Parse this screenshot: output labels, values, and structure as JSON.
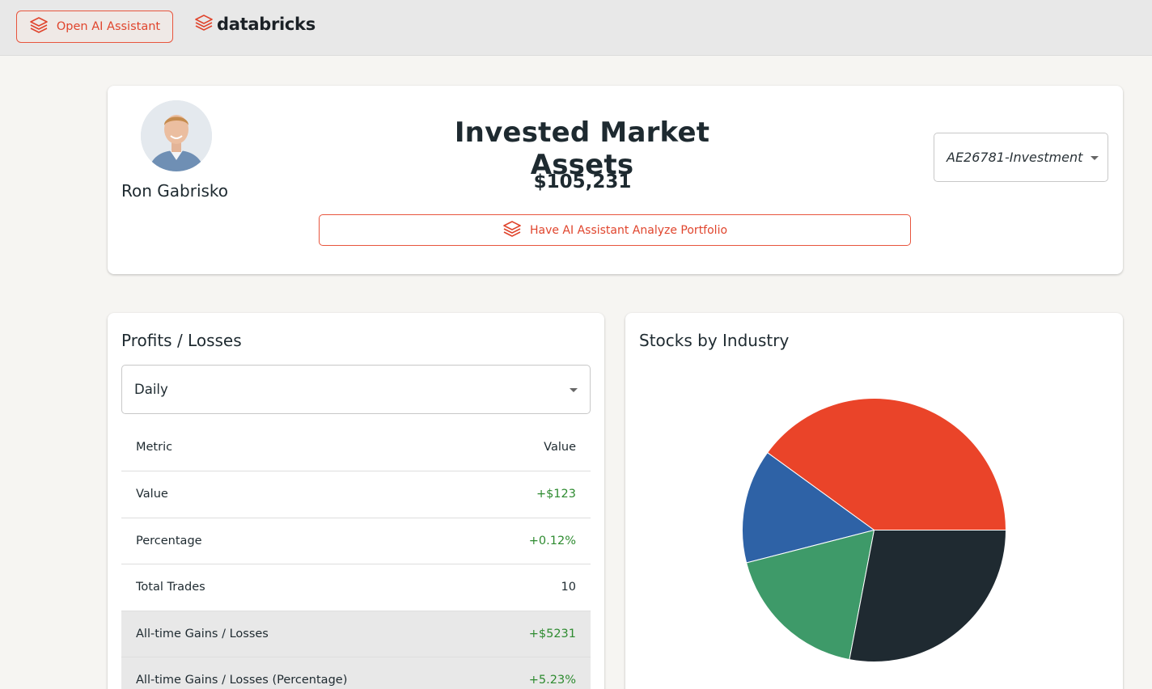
{
  "topbar": {
    "open_ai_label": "Open AI Assistant",
    "brand_name": "databricks",
    "brand_color": "#e0452d"
  },
  "header": {
    "user_name": "Ron Gabrisko",
    "title": "Invested Market Assets",
    "total_value": "$105,231",
    "analyze_label": "Have AI Assistant Analyze Portfolio",
    "account_selected": "AE26781-Investment"
  },
  "profits": {
    "title": "Profits / Losses",
    "period_selected": "Daily",
    "col_metric": "Metric",
    "col_value": "Value",
    "rows": [
      {
        "metric": "Value",
        "value": "+$123"
      },
      {
        "metric": "Percentage",
        "value": "+0.12%"
      },
      {
        "metric": "Total Trades",
        "value": "10"
      },
      {
        "metric": "All-time Gains / Losses",
        "value": "+$5231"
      },
      {
        "metric": "All-time Gains / Losses (Percentage)",
        "value": "+5.23%"
      }
    ]
  },
  "industry": {
    "title": "Stocks by Industry"
  },
  "chart_data": {
    "type": "pie",
    "title": "Stocks by Industry",
    "categories": [
      "",
      "",
      "",
      ""
    ],
    "values": [
      40,
      14,
      18,
      28
    ],
    "colors": [
      "#ea4429",
      "#2e62a6",
      "#3e9a69",
      "#1f2a31"
    ],
    "start": "3 o'clock, counter-clockwise"
  }
}
